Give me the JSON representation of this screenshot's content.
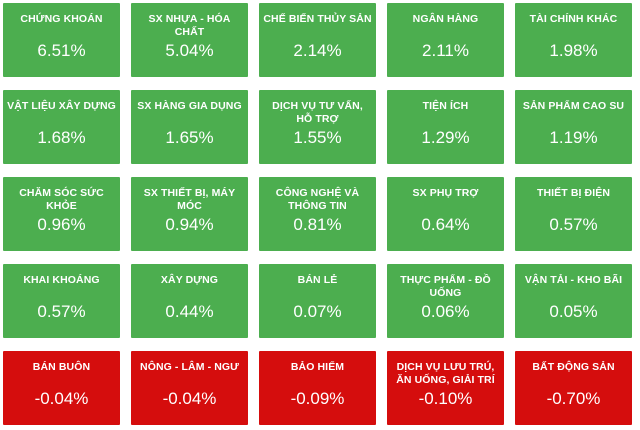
{
  "tiles": [
    {
      "label": "CHỨNG KHOÁN",
      "value": "6.51%",
      "status": "up"
    },
    {
      "label": "SX NHỰA - HÓA CHẤT",
      "value": "5.04%",
      "status": "up"
    },
    {
      "label": "CHẾ BIẾN THỦY SẢN",
      "value": "2.14%",
      "status": "up"
    },
    {
      "label": "NGÂN HÀNG",
      "value": "2.11%",
      "status": "up"
    },
    {
      "label": "TÀI CHÍNH KHÁC",
      "value": "1.98%",
      "status": "up"
    },
    {
      "label": "VẬT LIỆU XÂY DỰNG",
      "value": "1.68%",
      "status": "up"
    },
    {
      "label": "SX HÀNG GIA DỤNG",
      "value": "1.65%",
      "status": "up"
    },
    {
      "label": "DỊCH VỤ TƯ VẤN, HỖ TRỢ",
      "value": "1.55%",
      "status": "up"
    },
    {
      "label": "TIỆN ÍCH",
      "value": "1.29%",
      "status": "up"
    },
    {
      "label": "SẢN PHẨM CAO SU",
      "value": "1.19%",
      "status": "up"
    },
    {
      "label": "CHĂM SÓC SỨC KHỎE",
      "value": "0.96%",
      "status": "up"
    },
    {
      "label": "SX THIẾT BỊ, MÁY MÓC",
      "value": "0.94%",
      "status": "up"
    },
    {
      "label": "CÔNG NGHỆ VÀ THÔNG TIN",
      "value": "0.81%",
      "status": "up"
    },
    {
      "label": "SX PHỤ TRỢ",
      "value": "0.64%",
      "status": "up"
    },
    {
      "label": "THIẾT BỊ ĐIỆN",
      "value": "0.57%",
      "status": "up"
    },
    {
      "label": "KHAI KHOÁNG",
      "value": "0.57%",
      "status": "up"
    },
    {
      "label": "XÂY DỰNG",
      "value": "0.44%",
      "status": "up"
    },
    {
      "label": "BÁN LẺ",
      "value": "0.07%",
      "status": "up"
    },
    {
      "label": "THỰC PHẨM - ĐỒ UỐNG",
      "value": "0.06%",
      "status": "up"
    },
    {
      "label": "VẬN TẢI - KHO BÃI",
      "value": "0.05%",
      "status": "up"
    },
    {
      "label": "BÁN BUÔN",
      "value": "-0.04%",
      "status": "down"
    },
    {
      "label": "NÔNG - LÂM - NGƯ",
      "value": "-0.04%",
      "status": "down"
    },
    {
      "label": "BẢO HIỂM",
      "value": "-0.09%",
      "status": "down"
    },
    {
      "label": "DỊCH VỤ LƯU TRÚ, ĂN UỐNG, GIẢI TRÍ",
      "value": "-0.10%",
      "status": "down"
    },
    {
      "label": "BẤT ĐỘNG SẢN",
      "value": "-0.70%",
      "status": "down"
    }
  ],
  "colors": {
    "up": "#4cae4f",
    "down": "#d50d0d",
    "text": "#ffffff"
  }
}
